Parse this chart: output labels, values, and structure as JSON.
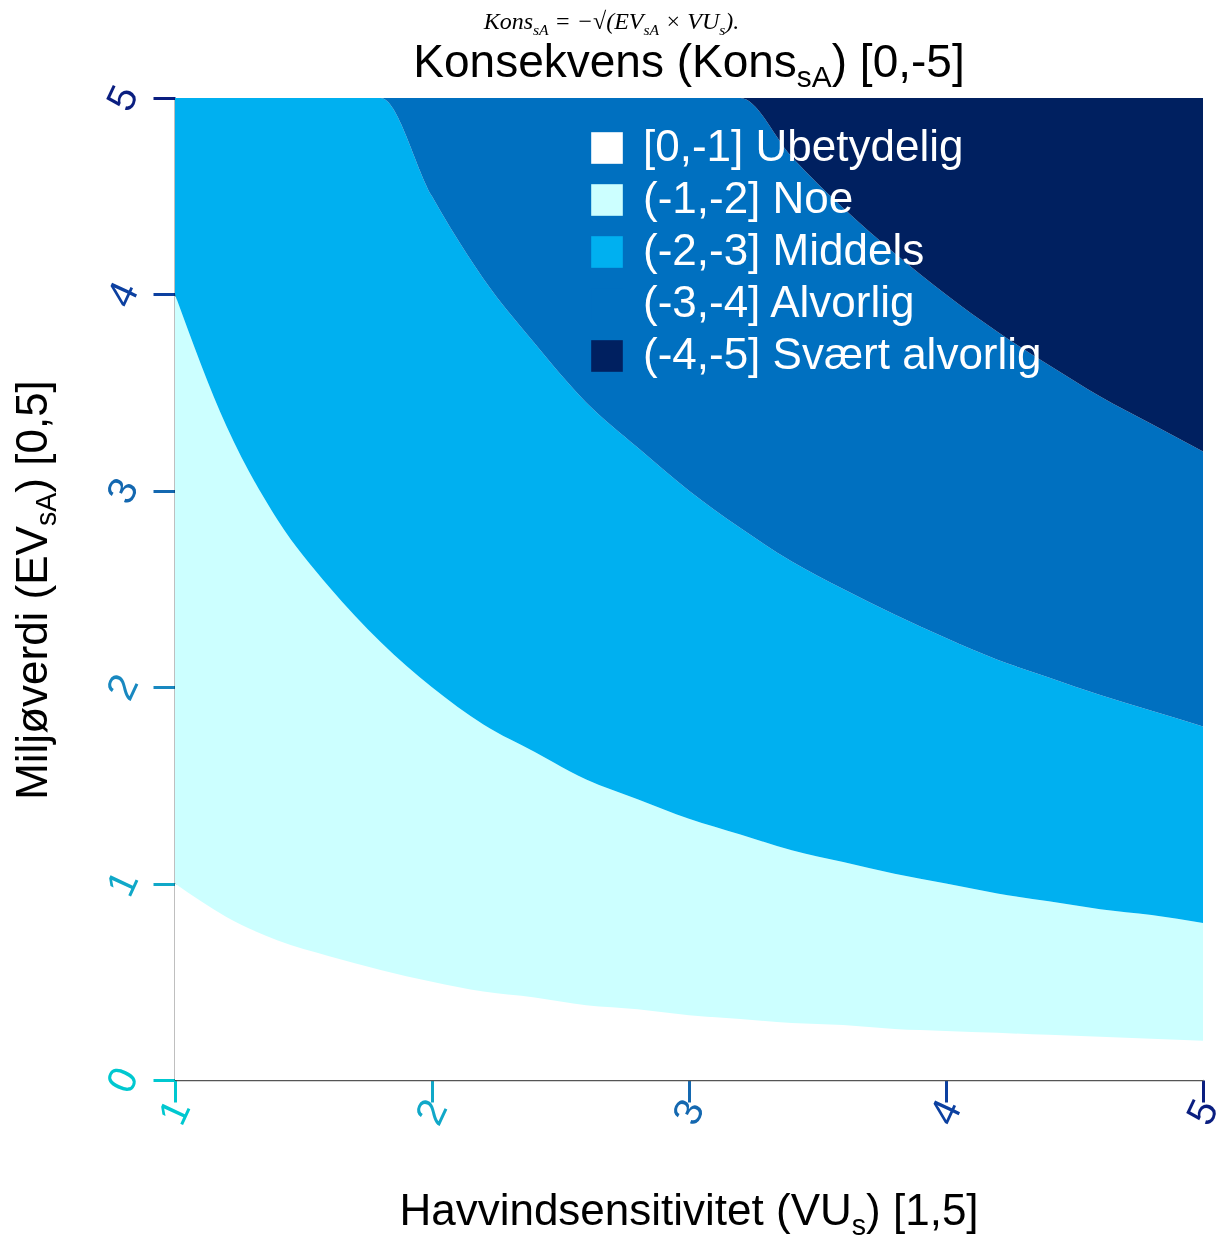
{
  "chart_data": {
    "type": "area",
    "stacked": true,
    "title": "Konsekvens (Kons$_{sA}$) [0,-5]",
    "annotations": [
      "Kons$_{sA}$ = −√(EV$_{sA}$ × VU$_{s}$)."
    ],
    "xlabel": "Havvindsensitivitet (VU$_{s}$) [1,5]",
    "ylabel": "Miljøverdi (EV$_{sA}$) [0,5]",
    "xlim": [
      1,
      5
    ],
    "xticks": [
      1,
      2,
      3,
      4,
      5
    ],
    "ylim": [
      0,
      5
    ],
    "yticks": [
      0,
      1,
      2,
      3,
      4,
      5
    ],
    "legend": "top right",
    "x": [
      1,
      1.2,
      1.4,
      1.6,
      1.8,
      2,
      2.2,
      2.4,
      2.6,
      2.8,
      3,
      3.2,
      3.4,
      3.6,
      3.8,
      4,
      4.2,
      4.4,
      4.6,
      4.8,
      5
    ],
    "series": [
      {
        "name": "[0,-1] Ubetydelig",
        "color": "#ffffff",
        "values": [
          1,
          0.83,
          0.71,
          0.63,
          0.56,
          0.5,
          0.45,
          0.42,
          0.38,
          0.36,
          0.33,
          0.31,
          0.29,
          0.28,
          0.26,
          0.25,
          0.24,
          0.23,
          0.22,
          0.21,
          0.2
        ]
      },
      {
        "name": "(-1,-2] Noe",
        "color": "#ccffff",
        "values": [
          3,
          2.5,
          2.14,
          1.88,
          1.67,
          1.5,
          1.36,
          1.25,
          1.15,
          1.07,
          1,
          0.94,
          0.88,
          0.83,
          0.79,
          0.75,
          0.71,
          0.68,
          0.65,
          0.63,
          0.6
        ]
      },
      {
        "name": "(-2,-3] Middels",
        "color": "#00b0f0",
        "values": [
          1,
          1.67,
          2.15,
          2.49,
          2.77,
          2.5,
          2.27,
          2.08,
          1.92,
          1.79,
          1.67,
          1.56,
          1.47,
          1.39,
          1.32,
          1.25,
          1.19,
          1.14,
          1.09,
          1.04,
          1
        ]
      },
      {
        "name": "(-3,-4] Alvorlig",
        "color": "#0070c0",
        "values": [
          0,
          0,
          0,
          0,
          0,
          0.5,
          0.92,
          1.25,
          1.55,
          1.78,
          2,
          2.19,
          2.06,
          1.94,
          1.84,
          1.75,
          1.67,
          1.59,
          1.52,
          1.46,
          1.4
        ]
      },
      {
        "name": "(-4,-5] Svært alvorlig",
        "color": "#002060",
        "values": [
          0,
          0,
          0,
          0,
          0,
          0,
          0,
          0,
          0,
          0,
          0,
          0,
          0.3,
          0.56,
          0.79,
          1,
          1.19,
          1.36,
          1.52,
          1.66,
          1.8
        ]
      }
    ]
  }
}
